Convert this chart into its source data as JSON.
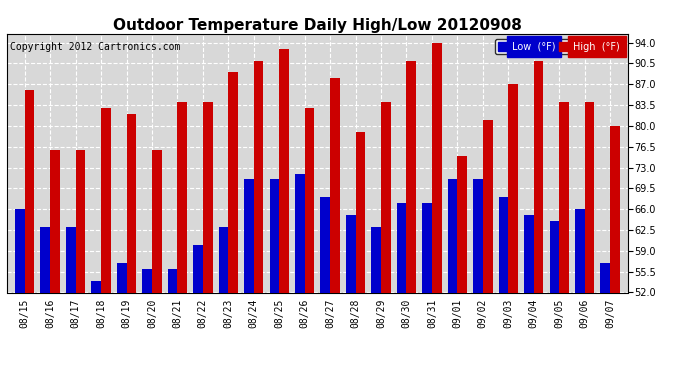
{
  "title": "Outdoor Temperature Daily High/Low 20120908",
  "copyright": "Copyright 2012 Cartronics.com",
  "legend_low": "Low  (°F)",
  "legend_high": "High  (°F)",
  "dates": [
    "08/15",
    "08/16",
    "08/17",
    "08/18",
    "08/19",
    "08/20",
    "08/21",
    "08/22",
    "08/23",
    "08/24",
    "08/25",
    "08/26",
    "08/27",
    "08/28",
    "08/29",
    "08/30",
    "08/31",
    "09/01",
    "09/02",
    "09/03",
    "09/04",
    "09/05",
    "09/06",
    "09/07"
  ],
  "highs": [
    86,
    76,
    76,
    83,
    82,
    76,
    84,
    84,
    89,
    91,
    93,
    83,
    88,
    79,
    84,
    91,
    94,
    75,
    81,
    87,
    91,
    84,
    84,
    80
  ],
  "lows": [
    66,
    63,
    63,
    54,
    57,
    56,
    56,
    60,
    63,
    71,
    71,
    72,
    68,
    65,
    63,
    67,
    67,
    71,
    71,
    68,
    65,
    64,
    66,
    57
  ],
  "ylim_min": 52,
  "ylim_max": 95.5,
  "yticks": [
    52.0,
    55.5,
    59.0,
    62.5,
    66.0,
    69.5,
    73.0,
    76.5,
    80.0,
    83.5,
    87.0,
    90.5,
    94.0
  ],
  "bar_width": 0.38,
  "low_color": "#0000cc",
  "high_color": "#cc0000",
  "bg_color": "#d8d8d8",
  "grid_color": "white",
  "title_fontsize": 11,
  "copyright_fontsize": 7,
  "tick_fontsize": 7,
  "ytick_fontsize": 7
}
